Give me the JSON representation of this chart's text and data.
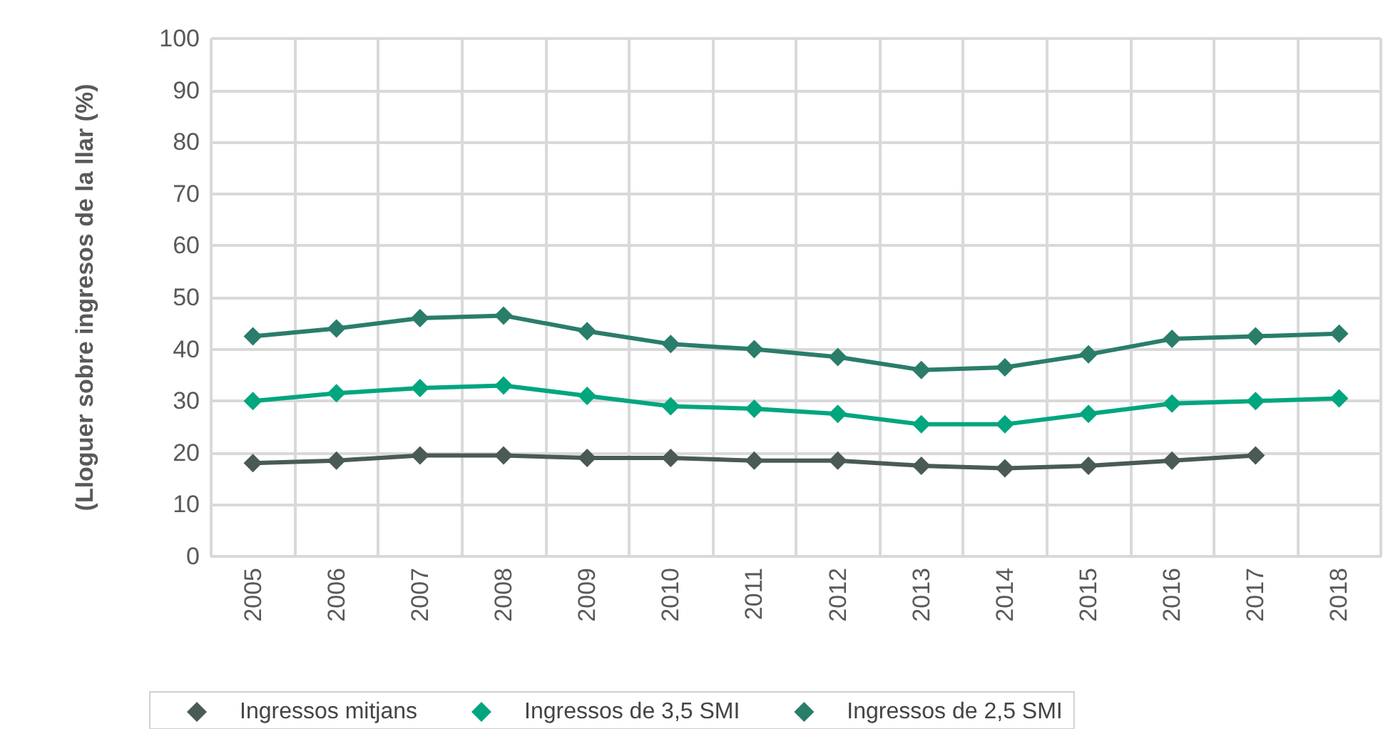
{
  "chart_data": {
    "type": "line",
    "ylabel": "(Lloguer sobre ingresos de la llar (%)",
    "categories": [
      "2005",
      "2006",
      "2007",
      "2008",
      "2009",
      "2010",
      "2011",
      "2012",
      "2013",
      "2014",
      "2015",
      "2016",
      "2017",
      "2018"
    ],
    "series": [
      {
        "name": "Ingressos mitjans",
        "color": "#4a5a55",
        "values": [
          18,
          18.5,
          19.5,
          19.5,
          19,
          19,
          18.5,
          18.5,
          17.5,
          17,
          17.5,
          18.5,
          19.5,
          null
        ]
      },
      {
        "name": "Ingressos de 3,5 SMI",
        "color": "#00a67e",
        "values": [
          30,
          31.5,
          32.5,
          33,
          31,
          29,
          28.5,
          27.5,
          25.5,
          25.5,
          27.5,
          29.5,
          30,
          30.5
        ]
      },
      {
        "name": "Ingressos de 2,5 SMI",
        "color": "#2a7d6a",
        "values": [
          42.5,
          44,
          46,
          46.5,
          43.5,
          41,
          40,
          38.5,
          36,
          36.5,
          39,
          42,
          42.5,
          43
        ]
      }
    ],
    "ylim": [
      0,
      100
    ],
    "yticks": [
      0,
      10,
      20,
      30,
      40,
      50,
      60,
      70,
      80,
      90,
      100
    ],
    "grid": true,
    "legend": "bottom",
    "marker": "diamond",
    "line_style": "solid"
  }
}
